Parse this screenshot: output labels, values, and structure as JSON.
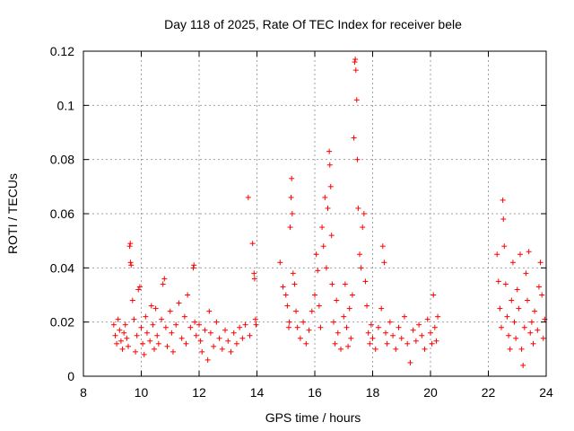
{
  "chart_data": {
    "type": "scatter",
    "title": "Day 118 of 2025, Rate Of TEC Index for receiver bele",
    "xlabel": "GPS time / hours",
    "ylabel": "ROTI / TECUs",
    "xlim": [
      8,
      24
    ],
    "ylim": [
      0,
      0.12
    ],
    "xticks": [
      8,
      10,
      12,
      14,
      16,
      18,
      20,
      22,
      24
    ],
    "yticks": [
      0,
      0.02,
      0.04,
      0.06,
      0.08,
      0.1,
      0.12
    ],
    "ytick_labels": [
      "0",
      "0.02",
      "0.04",
      "0.06",
      "0.08",
      "0.1",
      "0.12"
    ],
    "grid": true,
    "marker": "plus",
    "color": "#ff0000",
    "series": [
      {
        "points": [
          [
            9.05,
            0.019
          ],
          [
            9.1,
            0.015
          ],
          [
            9.15,
            0.012
          ],
          [
            9.2,
            0.021
          ],
          [
            9.25,
            0.017
          ],
          [
            9.3,
            0.013
          ],
          [
            9.35,
            0.01
          ],
          [
            9.4,
            0.016
          ],
          [
            9.45,
            0.019
          ],
          [
            9.5,
            0.014
          ],
          [
            9.55,
            0.011
          ],
          [
            9.6,
            0.048
          ],
          [
            9.62,
            0.049
          ],
          [
            9.63,
            0.042
          ],
          [
            9.65,
            0.041
          ],
          [
            9.7,
            0.028
          ],
          [
            9.75,
            0.021
          ],
          [
            9.8,
            0.009
          ],
          [
            9.85,
            0.015
          ],
          [
            9.9,
            0.032
          ],
          [
            9.95,
            0.033
          ],
          [
            10.0,
            0.018
          ],
          [
            10.05,
            0.012
          ],
          [
            10.1,
            0.008
          ],
          [
            10.15,
            0.022
          ],
          [
            10.2,
            0.016
          ],
          [
            10.3,
            0.013
          ],
          [
            10.35,
            0.026
          ],
          [
            10.4,
            0.019
          ],
          [
            10.45,
            0.01
          ],
          [
            10.5,
            0.025
          ],
          [
            10.55,
            0.015
          ],
          [
            10.6,
            0.012
          ],
          [
            10.7,
            0.021
          ],
          [
            10.75,
            0.034
          ],
          [
            10.8,
            0.036
          ],
          [
            10.85,
            0.018
          ],
          [
            10.9,
            0.011
          ],
          [
            11.0,
            0.024
          ],
          [
            11.05,
            0.016
          ],
          [
            11.1,
            0.009
          ],
          [
            11.2,
            0.019
          ],
          [
            11.3,
            0.027
          ],
          [
            11.4,
            0.014
          ],
          [
            11.5,
            0.022
          ],
          [
            11.55,
            0.012
          ],
          [
            11.6,
            0.03
          ],
          [
            11.7,
            0.018
          ],
          [
            11.8,
            0.04
          ],
          [
            11.82,
            0.041
          ],
          [
            11.85,
            0.02
          ],
          [
            11.9,
            0.015
          ],
          [
            12.0,
            0.019
          ],
          [
            12.05,
            0.013
          ],
          [
            12.1,
            0.009
          ],
          [
            12.2,
            0.017
          ],
          [
            12.3,
            0.006
          ],
          [
            12.35,
            0.024
          ],
          [
            12.4,
            0.016
          ],
          [
            12.5,
            0.011
          ],
          [
            12.6,
            0.02
          ],
          [
            12.7,
            0.014
          ],
          [
            12.8,
            0.01
          ],
          [
            12.9,
            0.017
          ],
          [
            13.0,
            0.013
          ],
          [
            13.1,
            0.009
          ],
          [
            13.2,
            0.016
          ],
          [
            13.3,
            0.012
          ],
          [
            13.4,
            0.018
          ],
          [
            13.5,
            0.014
          ],
          [
            13.6,
            0.019
          ],
          [
            13.7,
            0.066
          ],
          [
            13.75,
            0.015
          ],
          [
            13.85,
            0.049
          ],
          [
            13.9,
            0.038
          ],
          [
            13.92,
            0.036
          ],
          [
            13.95,
            0.021
          ],
          [
            13.97,
            0.019
          ],
          [
            14.8,
            0.042
          ],
          [
            14.9,
            0.033
          ],
          [
            15.0,
            0.03
          ],
          [
            15.05,
            0.026
          ],
          [
            15.1,
            0.018
          ],
          [
            15.12,
            0.02
          ],
          [
            15.15,
            0.055
          ],
          [
            15.18,
            0.066
          ],
          [
            15.2,
            0.073
          ],
          [
            15.22,
            0.06
          ],
          [
            15.25,
            0.038
          ],
          [
            15.3,
            0.034
          ],
          [
            15.35,
            0.024
          ],
          [
            15.4,
            0.018
          ],
          [
            15.5,
            0.014
          ],
          [
            15.6,
            0.02
          ],
          [
            15.7,
            0.012
          ],
          [
            15.8,
            0.017
          ],
          [
            15.9,
            0.024
          ],
          [
            16.0,
            0.03
          ],
          [
            16.05,
            0.045
          ],
          [
            16.1,
            0.039
          ],
          [
            16.15,
            0.026
          ],
          [
            16.2,
            0.018
          ],
          [
            16.25,
            0.055
          ],
          [
            16.3,
            0.048
          ],
          [
            16.35,
            0.066
          ],
          [
            16.4,
            0.04
          ],
          [
            16.45,
            0.062
          ],
          [
            16.5,
            0.083
          ],
          [
            16.52,
            0.078
          ],
          [
            16.55,
            0.07
          ],
          [
            16.58,
            0.052
          ],
          [
            16.6,
            0.034
          ],
          [
            16.65,
            0.02
          ],
          [
            16.7,
            0.012
          ],
          [
            16.75,
            0.028
          ],
          [
            16.8,
            0.016
          ],
          [
            16.9,
            0.01
          ],
          [
            17.0,
            0.022
          ],
          [
            17.05,
            0.034
          ],
          [
            17.1,
            0.018
          ],
          [
            17.15,
            0.011
          ],
          [
            17.2,
            0.025
          ],
          [
            17.25,
            0.014
          ],
          [
            17.3,
            0.03
          ],
          [
            17.35,
            0.088
          ],
          [
            17.38,
            0.116
          ],
          [
            17.4,
            0.117
          ],
          [
            17.42,
            0.113
          ],
          [
            17.45,
            0.102
          ],
          [
            17.47,
            0.08
          ],
          [
            17.5,
            0.062
          ],
          [
            17.55,
            0.045
          ],
          [
            17.6,
            0.04
          ],
          [
            17.65,
            0.055
          ],
          [
            17.7,
            0.06
          ],
          [
            17.75,
            0.035
          ],
          [
            17.8,
            0.026
          ],
          [
            17.85,
            0.016
          ],
          [
            17.9,
            0.012
          ],
          [
            17.95,
            0.019
          ],
          [
            18.0,
            0.014
          ],
          [
            18.1,
            0.01
          ],
          [
            18.2,
            0.018
          ],
          [
            18.3,
            0.025
          ],
          [
            18.35,
            0.048
          ],
          [
            18.4,
            0.042
          ],
          [
            18.45,
            0.016
          ],
          [
            18.5,
            0.012
          ],
          [
            18.6,
            0.02
          ],
          [
            18.7,
            0.015
          ],
          [
            18.8,
            0.01
          ],
          [
            18.9,
            0.018
          ],
          [
            19.0,
            0.014
          ],
          [
            19.1,
            0.022
          ],
          [
            19.2,
            0.012
          ],
          [
            19.3,
            0.005
          ],
          [
            19.4,
            0.017
          ],
          [
            19.5,
            0.013
          ],
          [
            19.6,
            0.019
          ],
          [
            19.7,
            0.015
          ],
          [
            19.8,
            0.01
          ],
          [
            19.9,
            0.021
          ],
          [
            20.0,
            0.016
          ],
          [
            20.05,
            0.012
          ],
          [
            20.1,
            0.03
          ],
          [
            20.15,
            0.018
          ],
          [
            20.2,
            0.013
          ],
          [
            20.25,
            0.022
          ],
          [
            22.3,
            0.045
          ],
          [
            22.35,
            0.035
          ],
          [
            22.4,
            0.025
          ],
          [
            22.45,
            0.018
          ],
          [
            22.5,
            0.065
          ],
          [
            22.52,
            0.058
          ],
          [
            22.55,
            0.048
          ],
          [
            22.6,
            0.034
          ],
          [
            22.65,
            0.022
          ],
          [
            22.7,
            0.015
          ],
          [
            22.75,
            0.01
          ],
          [
            22.8,
            0.028
          ],
          [
            22.85,
            0.042
          ],
          [
            22.9,
            0.02
          ],
          [
            22.95,
            0.014
          ],
          [
            23.0,
            0.032
          ],
          [
            23.05,
            0.025
          ],
          [
            23.1,
            0.045
          ],
          [
            23.15,
            0.01
          ],
          [
            23.2,
            0.004
          ],
          [
            23.25,
            0.018
          ],
          [
            23.3,
            0.038
          ],
          [
            23.35,
            0.028
          ],
          [
            23.4,
            0.046
          ],
          [
            23.45,
            0.016
          ],
          [
            23.5,
            0.02
          ],
          [
            23.55,
            0.012
          ],
          [
            23.6,
            0.024
          ],
          [
            23.7,
            0.017
          ],
          [
            23.75,
            0.033
          ],
          [
            23.8,
            0.042
          ],
          [
            23.85,
            0.03
          ],
          [
            23.9,
            0.014
          ],
          [
            23.95,
            0.021
          ]
        ]
      }
    ]
  }
}
